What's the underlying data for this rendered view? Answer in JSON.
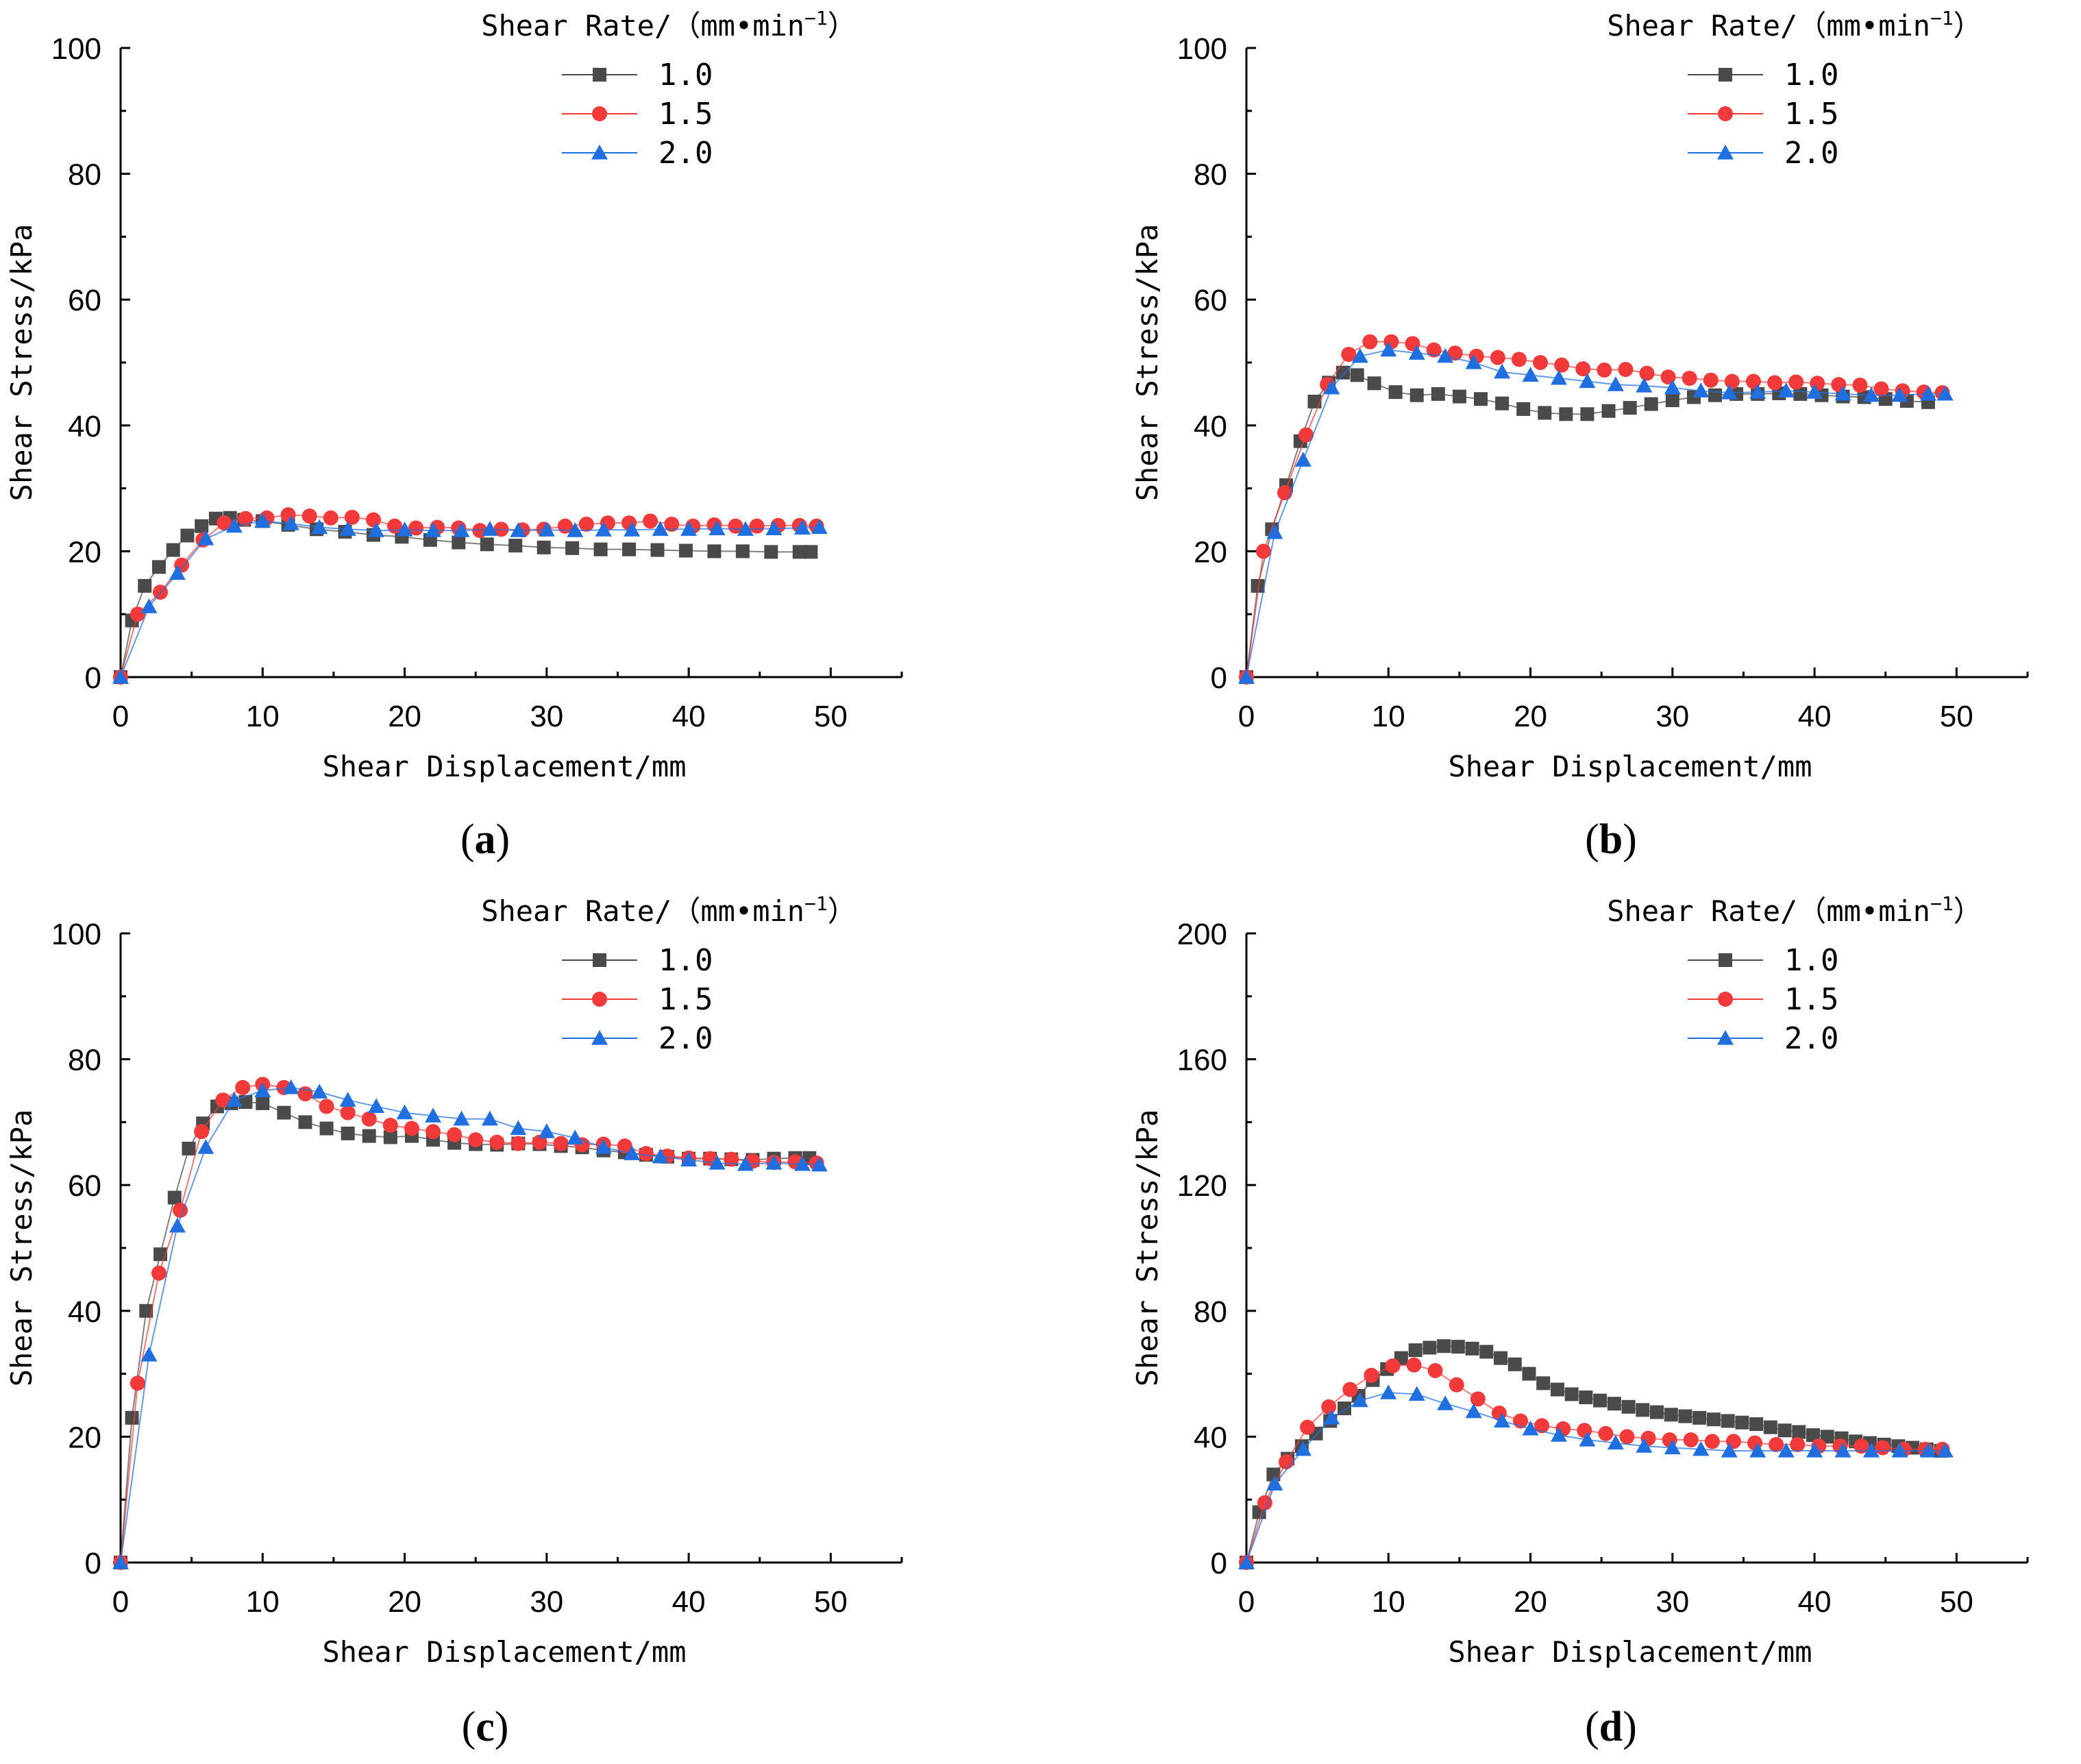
{
  "colors": {
    "series_1_0": "#4a4a4a",
    "series_1_5": "#f23a3a",
    "series_2_0": "#1f6fe0"
  },
  "chart_data": [
    {
      "type": "scatter",
      "panel_label": "(a)",
      "xlabel": "Shear Displacement/mm",
      "ylabel": "Shear Stress/kPa",
      "xlim": [
        0,
        55
      ],
      "ylim": [
        0,
        100
      ],
      "xticks": [
        0,
        10,
        20,
        30,
        40,
        50
      ],
      "yticks": [
        0,
        20,
        40,
        60,
        80,
        100
      ],
      "legend_title": "Shear Rate/（mm•min",
      "legend_title_sup": "−1",
      "legend_title_close": "）",
      "legend_position": "top-right",
      "series": [
        {
          "name": "1.0",
          "marker": "square",
          "color": "#4a4a4a",
          "x": [
            0,
            0.8,
            1.7,
            2.7,
            3.7,
            4.7,
            5.7,
            6.7,
            7.7,
            8.7,
            10,
            11.8,
            13.8,
            15.8,
            17.8,
            19.8,
            21.8,
            23.8,
            25.8,
            27.8,
            29.8,
            31.8,
            33.8,
            35.8,
            37.8,
            39.8,
            41.8,
            43.8,
            45.8,
            47.8,
            48.6
          ],
          "y": [
            0,
            9,
            14.5,
            17.5,
            20.2,
            22.5,
            24,
            25.2,
            25.3,
            25,
            24.8,
            24.2,
            23.5,
            23.1,
            22.6,
            22.3,
            21.8,
            21.4,
            21.1,
            20.9,
            20.6,
            20.5,
            20.3,
            20.3,
            20.2,
            20.1,
            20,
            20,
            19.9,
            19.9,
            19.9
          ]
        },
        {
          "name": "1.5",
          "marker": "circle",
          "color": "#f23a3a",
          "x": [
            0,
            1.2,
            2.8,
            4.3,
            5.8,
            7.3,
            8.8,
            10.3,
            11.8,
            13.3,
            14.8,
            16.3,
            17.8,
            19.3,
            20.8,
            22.3,
            23.8,
            25.3,
            26.8,
            28.3,
            29.8,
            31.3,
            32.8,
            34.3,
            35.8,
            37.3,
            38.8,
            40.3,
            41.8,
            43.3,
            44.8,
            46.3,
            47.8,
            49
          ],
          "y": [
            0,
            10,
            13.5,
            17.8,
            21.8,
            24.5,
            25.2,
            25.3,
            25.8,
            25.6,
            25.3,
            25.4,
            25,
            24,
            23.7,
            23.8,
            23.7,
            23.3,
            23.5,
            23.4,
            23.5,
            24,
            24.3,
            24.5,
            24.5,
            24.8,
            24.3,
            24,
            24.2,
            24,
            24,
            24.1,
            24.1,
            24
          ]
        },
        {
          "name": "2.0",
          "marker": "triangle",
          "color": "#1f6fe0",
          "x": [
            0,
            2,
            4,
            6,
            8,
            10,
            12,
            14,
            16,
            18,
            20,
            22,
            24,
            26,
            28,
            30,
            32,
            34,
            36,
            38,
            40,
            42,
            44,
            46,
            48,
            49.2
          ],
          "y": [
            0,
            11.2,
            16.5,
            22,
            24,
            24.8,
            24.4,
            23.8,
            23.5,
            23.3,
            23.4,
            23.3,
            23.3,
            23.5,
            23.3,
            23.4,
            23.3,
            23.4,
            23.4,
            23.5,
            23.5,
            23.6,
            23.5,
            23.6,
            23.7,
            23.8
          ]
        }
      ]
    },
    {
      "type": "scatter",
      "panel_label": "(b)",
      "xlabel": "Shear Displacement/mm",
      "ylabel": "Shear Stress/kPa",
      "xlim": [
        0,
        55
      ],
      "ylim": [
        0,
        100
      ],
      "xticks": [
        0,
        10,
        20,
        30,
        40,
        50
      ],
      "yticks": [
        0,
        20,
        40,
        60,
        80,
        100
      ],
      "legend_title": "Shear Rate/（mm•min",
      "legend_title_sup": "−1",
      "legend_title_close": "）",
      "legend_position": "top-right",
      "series": [
        {
          "name": "1.0",
          "marker": "square",
          "color": "#4a4a4a",
          "x": [
            0,
            0.8,
            1.8,
            2.8,
            3.8,
            4.8,
            5.8,
            6.8,
            7.8,
            9,
            10.5,
            12,
            13.5,
            15,
            16.5,
            18,
            19.5,
            21,
            22.5,
            24,
            25.5,
            27,
            28.5,
            30,
            31.5,
            33,
            34.5,
            36,
            37.5,
            39,
            40.5,
            42,
            43.5,
            45,
            46.5,
            48
          ],
          "y": [
            0,
            14.5,
            23.5,
            30.5,
            37.5,
            43.8,
            46.8,
            48.4,
            48,
            46.7,
            45.3,
            44.8,
            45,
            44.6,
            44.2,
            43.5,
            42.6,
            42,
            41.8,
            41.8,
            42.3,
            42.8,
            43.4,
            44,
            44.5,
            44.8,
            45,
            45,
            45.1,
            45,
            44.8,
            44.6,
            44.5,
            44.2,
            43.9,
            43.7
          ]
        },
        {
          "name": "1.5",
          "marker": "circle",
          "color": "#f23a3a",
          "x": [
            0,
            1.2,
            2.7,
            4.2,
            5.7,
            7.2,
            8.7,
            10.2,
            11.7,
            13.2,
            14.7,
            16.2,
            17.7,
            19.2,
            20.7,
            22.2,
            23.7,
            25.2,
            26.7,
            28.2,
            29.7,
            31.2,
            32.7,
            34.2,
            35.7,
            37.2,
            38.7,
            40.2,
            41.7,
            43.2,
            44.7,
            46.2,
            47.7,
            49
          ],
          "y": [
            0,
            20,
            29.3,
            38.5,
            46.5,
            51.3,
            53.3,
            53.3,
            53,
            52,
            51.5,
            51,
            50.8,
            50.5,
            50,
            49.6,
            49,
            48.8,
            48.9,
            48.3,
            47.7,
            47.5,
            47.2,
            47,
            47,
            46.8,
            46.9,
            46.7,
            46.5,
            46.4,
            45.8,
            45.5,
            45.3,
            45.2
          ]
        },
        {
          "name": "2.0",
          "marker": "triangle",
          "color": "#1f6fe0",
          "x": [
            0,
            2,
            4,
            6,
            8,
            10,
            12,
            14,
            16,
            18,
            20,
            22,
            24,
            26,
            28,
            30,
            32,
            34,
            36,
            38,
            40,
            42,
            44,
            46,
            48,
            49.2
          ],
          "y": [
            0,
            23,
            34.5,
            46,
            51,
            52,
            51.5,
            51,
            50,
            48.5,
            48,
            47.5,
            47,
            46.5,
            46.3,
            46,
            45.5,
            45.2,
            45.3,
            45.5,
            45.3,
            45,
            44.8,
            44.8,
            45,
            45
          ]
        }
      ]
    },
    {
      "type": "scatter",
      "panel_label": "(c)",
      "xlabel": "Shear Displacement/mm",
      "ylabel": "Shear Stress/kPa",
      "xlim": [
        0,
        55
      ],
      "ylim": [
        0,
        100
      ],
      "xticks": [
        0,
        10,
        20,
        30,
        40,
        50
      ],
      "yticks": [
        0,
        20,
        40,
        60,
        80,
        100
      ],
      "legend_title": "Shear Rate/（mm•min",
      "legend_title_sup": "−1",
      "legend_title_close": "）",
      "legend_position": "top-right",
      "series": [
        {
          "name": "1.0",
          "marker": "square",
          "color": "#4a4a4a",
          "x": [
            0,
            0.8,
            1.8,
            2.8,
            3.8,
            4.8,
            5.8,
            6.8,
            7.8,
            8.8,
            10,
            11.5,
            13,
            14.5,
            16,
            17.5,
            19,
            20.5,
            22,
            23.5,
            25,
            26.5,
            28,
            29.5,
            31,
            32.5,
            34,
            35.5,
            37,
            38.5,
            40,
            41.5,
            43,
            44.5,
            46,
            47.5,
            48.5
          ],
          "y": [
            0,
            23,
            40,
            49,
            58,
            65.8,
            69.8,
            72.5,
            73,
            73.2,
            73,
            71.5,
            70,
            69,
            68.2,
            67.8,
            67.6,
            67.8,
            67.2,
            66.7,
            66.5,
            66.4,
            66.6,
            66.5,
            66.2,
            66,
            65.5,
            65.2,
            64.8,
            64.5,
            64.2,
            64.2,
            64.1,
            64,
            64.2,
            64.3,
            64.3
          ]
        },
        {
          "name": "1.5",
          "marker": "circle",
          "color": "#f23a3a",
          "x": [
            0,
            1.2,
            2.7,
            4.2,
            5.7,
            7.2,
            8.6,
            10,
            11.5,
            13,
            14.5,
            16,
            17.5,
            19,
            20.5,
            22,
            23.5,
            25,
            26.5,
            28,
            29.5,
            31,
            32.5,
            34,
            35.5,
            37,
            38.5,
            40,
            41.5,
            43,
            44.5,
            46,
            47.5,
            49
          ],
          "y": [
            0,
            28.5,
            46,
            56,
            68.5,
            73.5,
            75.5,
            76,
            75.5,
            74.5,
            72.5,
            71.5,
            70.5,
            69.5,
            69,
            68.5,
            68,
            67.2,
            66.8,
            66.6,
            66.8,
            66.6,
            66.4,
            66.5,
            66.2,
            65,
            64.6,
            64.3,
            64.2,
            64.1,
            63.8,
            63.6,
            63.7,
            63.5
          ]
        },
        {
          "name": "2.0",
          "marker": "triangle",
          "color": "#1f6fe0",
          "x": [
            0,
            2,
            4,
            6,
            8,
            10,
            12,
            14,
            16,
            18,
            20,
            22,
            24,
            26,
            28,
            30,
            32,
            34,
            36,
            38,
            40,
            42,
            44,
            46,
            48,
            49.2
          ],
          "y": [
            0,
            33,
            53.5,
            66,
            73.5,
            75,
            75.5,
            74.8,
            73.5,
            72.5,
            71.5,
            71,
            70.5,
            70.5,
            69,
            68.5,
            67.5,
            66,
            65,
            64.5,
            64,
            63.5,
            63.3,
            63.5,
            63.3,
            63.2
          ]
        }
      ]
    },
    {
      "type": "scatter",
      "panel_label": "(d)",
      "xlabel": "Shear Displacement/mm",
      "ylabel": "Shear Stress/kPa",
      "xlim": [
        0,
        55
      ],
      "ylim": [
        0,
        200
      ],
      "xticks": [
        0,
        10,
        20,
        30,
        40,
        50
      ],
      "yticks": [
        0,
        40,
        80,
        120,
        160,
        200
      ],
      "legend_title": "Shear Rate/（mm•min",
      "legend_title_sup": "−1",
      "legend_title_close": "）",
      "legend_position": "top-right",
      "series": [
        {
          "name": "1.0",
          "marker": "square",
          "color": "#4a4a4a",
          "x": [
            0,
            0.9,
            1.9,
            2.9,
            3.9,
            4.9,
            5.9,
            6.9,
            7.9,
            8.9,
            9.9,
            10.9,
            11.9,
            12.9,
            13.9,
            14.9,
            15.9,
            16.9,
            17.9,
            18.9,
            19.9,
            20.9,
            21.9,
            22.9,
            23.9,
            24.9,
            25.9,
            26.9,
            27.9,
            28.9,
            29.9,
            30.9,
            31.9,
            32.9,
            33.9,
            34.9,
            35.9,
            36.9,
            37.9,
            38.9,
            39.9,
            40.9,
            41.9,
            42.9,
            43.9,
            44.9,
            45.9,
            46.9,
            47.9,
            48.9
          ],
          "y": [
            0,
            16,
            28,
            33,
            37,
            41,
            45,
            49,
            53,
            58,
            61.5,
            65,
            67.5,
            68.3,
            68.8,
            68.6,
            68,
            67,
            65,
            63,
            60,
            57,
            55,
            53.5,
            52.5,
            51.5,
            50.5,
            49.5,
            48.5,
            47.8,
            47,
            46.5,
            46,
            45.5,
            45,
            44.5,
            44,
            43,
            42,
            41.5,
            40.5,
            40,
            39.5,
            38.5,
            38,
            37.5,
            37,
            36.5,
            36,
            35.5
          ]
        },
        {
          "name": "1.5",
          "marker": "circle",
          "color": "#f23a3a",
          "x": [
            0,
            1.3,
            2.8,
            4.3,
            5.8,
            7.3,
            8.8,
            10.3,
            11.8,
            13.3,
            14.8,
            16.3,
            17.8,
            19.3,
            20.8,
            22.3,
            23.8,
            25.3,
            26.8,
            28.3,
            29.8,
            31.3,
            32.8,
            34.3,
            35.8,
            37.3,
            38.8,
            40.3,
            41.8,
            43.3,
            44.8,
            46.3,
            47.8,
            49
          ],
          "y": [
            0,
            19,
            32,
            43,
            49.5,
            55,
            59.5,
            62.5,
            62.8,
            61,
            56.5,
            52,
            47.5,
            45,
            43.5,
            42.5,
            42,
            41,
            40,
            39.5,
            39,
            39,
            38.5,
            38.5,
            38,
            37.5,
            37.5,
            37,
            37,
            37,
            36.5,
            36,
            36,
            36
          ]
        },
        {
          "name": "2.0",
          "marker": "triangle",
          "color": "#1f6fe0",
          "x": [
            0,
            2,
            4,
            6,
            8,
            10,
            12,
            14,
            16,
            18,
            20,
            22,
            24,
            26,
            28,
            30,
            32,
            34,
            36,
            38,
            40,
            42,
            44,
            46,
            48,
            49.2
          ],
          "y": [
            0,
            25,
            36,
            46,
            51.5,
            54,
            53.5,
            50.5,
            48,
            45,
            42.5,
            40.5,
            39,
            38,
            37,
            36.5,
            36,
            35.5,
            35.5,
            35.5,
            35.5,
            35.5,
            35.5,
            35.5,
            35.5,
            35.5
          ]
        }
      ]
    }
  ]
}
